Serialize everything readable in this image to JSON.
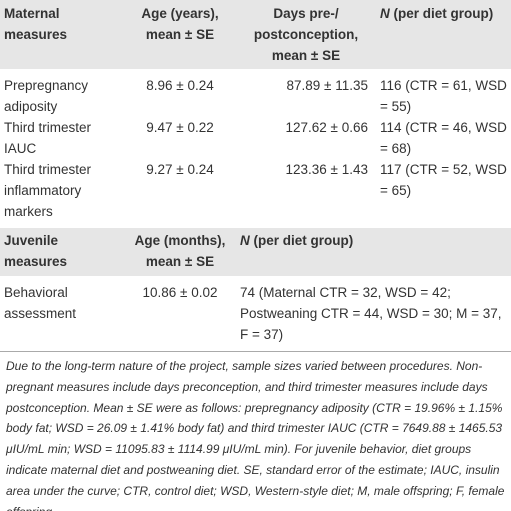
{
  "maternal": {
    "header": [
      "Maternal measures",
      "Age (years), mean ± SE",
      "Days pre-/ postconception, mean ± SE",
      {
        "emph": "N",
        "rest": " (per diet group)"
      }
    ],
    "rows": [
      [
        "Prepregnancy adiposity",
        "8.96 ± 0.24",
        "87.89 ± 11.35",
        "116 (CTR = 61, WSD = 55)"
      ],
      [
        "Third trimester IAUC",
        "9.47 ± 0.22",
        "127.62 ± 0.66",
        "114 (CTR = 46, WSD = 68)"
      ],
      [
        "Third trimester inflammatory markers",
        "9.27 ± 0.24",
        "123.36 ± 1.43",
        "117 (CTR = 52, WSD = 65)"
      ]
    ]
  },
  "juvenile": {
    "header": [
      "Juvenile measures",
      "Age (months), mean ± SE",
      {
        "emph": "N",
        "rest": " (per diet group)"
      }
    ],
    "rows": [
      [
        "Behavioral assessment",
        "10.86 ± 0.02",
        "74 (Maternal CTR = 32, WSD = 42; Postweaning CTR = 44, WSD = 30; M = 37, F = 37)"
      ]
    ]
  },
  "footnote": "Due to the long-term nature of the project, sample sizes varied between procedures. Non-pregnant measures include days preconception, and third trimester measures include days postconception. Mean ± SE were as follows: prepregnancy adiposity (CTR = 19.96% ± 1.15% body fat; WSD = 26.09 ± 1.41% body fat) and third trimester IAUC (CTR = 7649.88 ± 1465.53 μIU/mL min; WSD = 11095.83 ± 1114.99 μIU/mL min). For juvenile behavior, diet groups indicate maternal diet and postweaning diet. SE, standard error of the estimate; IAUC, insulin area under the curve; CTR, control diet; WSD, Western-style diet; M, male offspring; F, female offspring."
}
